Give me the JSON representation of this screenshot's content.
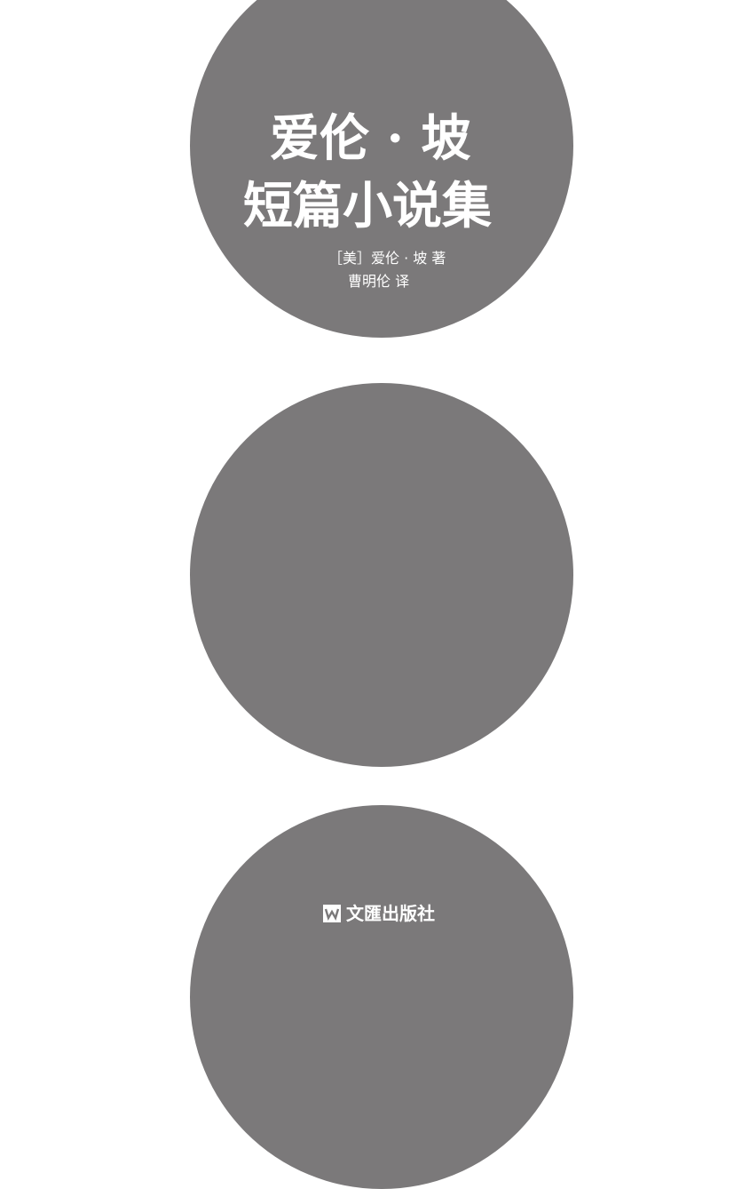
{
  "cover": {
    "title_line_1": "爱伦 · 坡",
    "title_line_2": "短篇小说集",
    "author": "［美］爱伦 · 坡 著",
    "translator": "曹明伦 译",
    "publisher": "文匯出版社",
    "publisher_logo_icon": "publisher-logo-icon"
  },
  "colors": {
    "background": "#ffffff",
    "circle": "#7b797a",
    "text": "#ffffff"
  }
}
